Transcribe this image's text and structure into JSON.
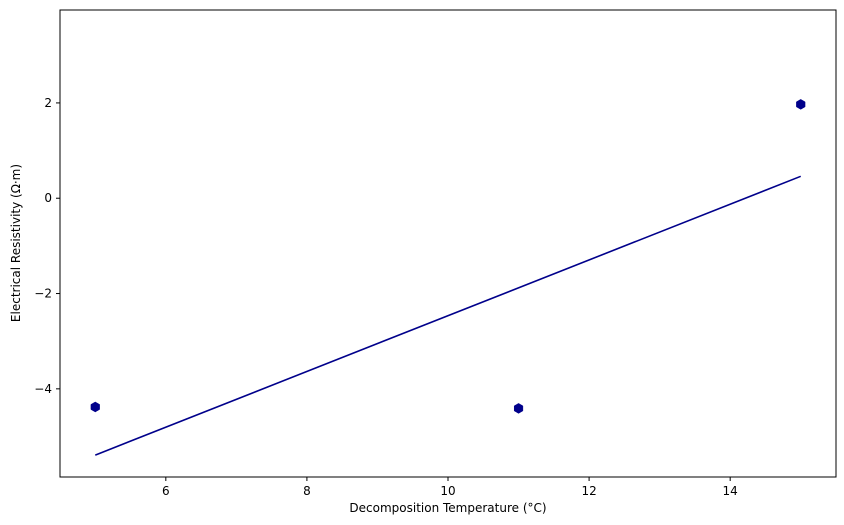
{
  "chart_data": {
    "type": "scatter",
    "title": "",
    "xlabel": "Decomposition Temperature (°C)",
    "ylabel": "Electrical Resistivity (Ω·m)",
    "xlim": [
      4.5,
      15.5
    ],
    "ylim": [
      -5.85,
      3.95
    ],
    "xticks": [
      6,
      8,
      10,
      12,
      14
    ],
    "yticks": [
      2,
      0,
      -2,
      -4
    ],
    "xtick_labels": [
      "6",
      "8",
      "10",
      "12",
      "14"
    ],
    "ytick_labels": [
      "2",
      "0",
      "−2",
      "−4"
    ],
    "grid": false,
    "legend": "none",
    "series": [
      {
        "kind": "scatter",
        "marker": "hexagon",
        "color": "#00008b",
        "x": [
          5,
          11,
          15
        ],
        "y": [
          -4.38,
          -4.41,
          1.97
        ]
      },
      {
        "kind": "line",
        "color": "#00008b",
        "x": [
          5,
          15
        ],
        "y": [
          -5.39,
          0.46
        ]
      }
    ]
  }
}
